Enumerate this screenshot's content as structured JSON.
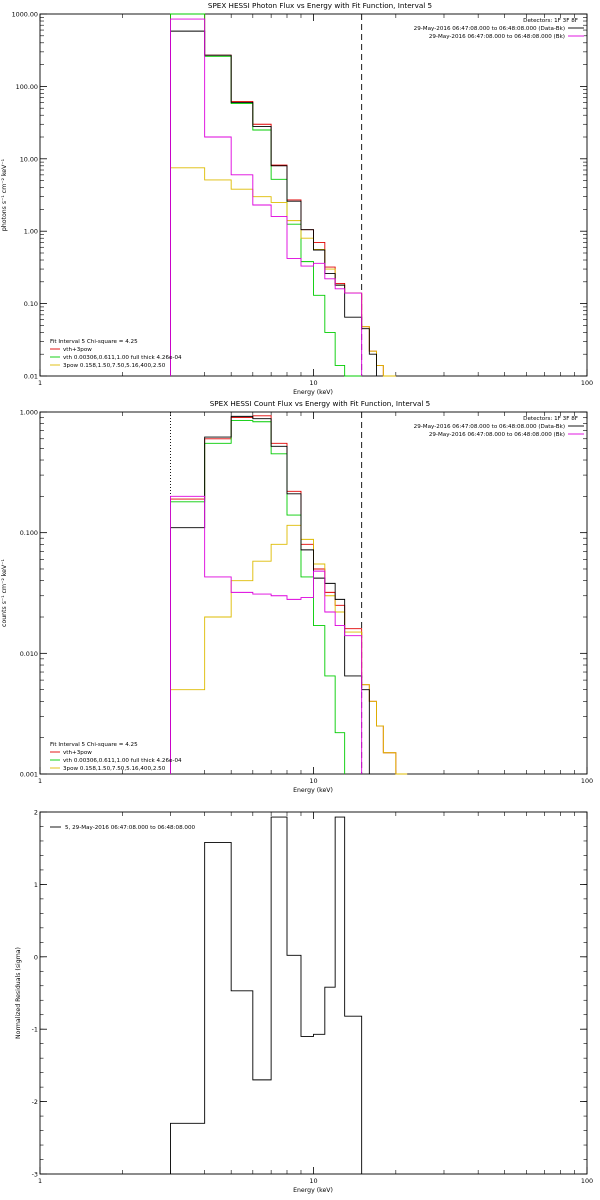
{
  "chart_data": [
    {
      "type": "line",
      "title": "SPEX HESSI Photon Flux vs Energy with Fit Function, Interval 5",
      "xlabel": "Energy (keV)",
      "ylabel": "photons s⁻¹ cm⁻² keV⁻¹",
      "xscale": "log",
      "yscale": "log",
      "xlim": [
        1,
        100
      ],
      "ylim": [
        0.01,
        1000
      ],
      "x_ticks": [
        {
          "v": 1,
          "label": "1"
        },
        {
          "v": 10,
          "label": "10"
        },
        {
          "v": 100,
          "label": "100"
        }
      ],
      "y_ticks": [
        {
          "v": 1000,
          "label": "1000.00"
        },
        {
          "v": 100,
          "label": "100.00"
        },
        {
          "v": 10,
          "label": "10.00"
        },
        {
          "v": 1,
          "label": "1.00"
        },
        {
          "v": 0.1,
          "label": "0.10"
        },
        {
          "v": 0.01,
          "label": "0.01"
        }
      ],
      "legend_top": {
        "heading": "Detectors: 1F 3F 8F",
        "lines": [
          {
            "text": "29-May-2016 06:47:08.000 to 06:48:08.000 (Data-Bk)",
            "color": "#000000"
          },
          {
            "text": "29-May-2016 06:47:08.000 to 06:48:08.000 (Bk)",
            "color": "#dd00dd"
          }
        ]
      },
      "legend_bottom": {
        "heading": "Fit Interval 5   Chi-square = 4.25",
        "lines": [
          {
            "text": "vth+3pow",
            "color": "#e00000"
          },
          {
            "text": "vth 0.00306,0.611,1.00  full thick 4.26e-04",
            "color": "#00cc00"
          },
          {
            "text": "3pow 0.158,1.50,7.50,5.16,400,2.50",
            "color": "#ddbb00"
          }
        ]
      },
      "energy_markers": [
        {
          "x": 3,
          "style": "dotted",
          "color": "#000000"
        },
        {
          "x": 15,
          "style": "dashed",
          "color": "#000000"
        }
      ],
      "bin_edges": [
        3,
        4,
        5,
        6,
        7,
        8,
        9,
        10,
        11,
        12,
        13,
        15,
        16,
        17,
        18,
        20,
        22
      ],
      "series": [
        {
          "name": "vth+3pow",
          "color": "#e00000",
          "values": [
            1000,
            270,
            62,
            30,
            8.2,
            2.7,
            1.05,
            0.7,
            0.32,
            0.19,
            0.14,
            0.048,
            0.022,
            0.014,
            0.0035,
            null
          ]
        },
        {
          "name": "vth 0.00306,0.611,1.00  full thick 4.26e-04",
          "color": "#00cc00",
          "values": [
            1000,
            260,
            58,
            25,
            5.2,
            1.25,
            0.38,
            0.13,
            0.04,
            0.014,
            0.0045,
            null,
            null,
            null,
            null,
            null
          ]
        },
        {
          "name": "3pow 0.158,1.50,7.50,5.16,400,2.50",
          "color": "#ddbb00",
          "values": [
            7.5,
            5.1,
            3.8,
            3.0,
            2.5,
            1.4,
            0.8,
            0.56,
            0.3,
            0.18,
            0.14,
            0.048,
            0.022,
            0.014,
            0.0035,
            null
          ]
        },
        {
          "name": "Data-Bk",
          "color": "#000000",
          "values": [
            580,
            270,
            60,
            28,
            8.0,
            2.6,
            1.05,
            0.55,
            0.26,
            0.18,
            0.065,
            0.045,
            0.02,
            null,
            null,
            null
          ]
        },
        {
          "name": "Bk",
          "color": "#dd00dd",
          "values": [
            850,
            20,
            6.0,
            2.3,
            1.6,
            0.42,
            0.33,
            0.36,
            0.22,
            0.16,
            0.14,
            null,
            null,
            null,
            null,
            null
          ]
        }
      ]
    },
    {
      "type": "line",
      "title": "SPEX HESSI Count Flux vs Energy with Fit Function, Interval 5",
      "xlabel": "Energy (keV)",
      "ylabel": "counts s⁻¹ cm⁻² keV⁻¹",
      "xscale": "log",
      "yscale": "log",
      "xlim": [
        1,
        100
      ],
      "ylim": [
        0.001,
        1
      ],
      "x_ticks": [
        {
          "v": 1,
          "label": "1"
        },
        {
          "v": 10,
          "label": "10"
        },
        {
          "v": 100,
          "label": "100"
        }
      ],
      "y_ticks": [
        {
          "v": 1,
          "label": "1.000"
        },
        {
          "v": 0.1,
          "label": "0.100"
        },
        {
          "v": 0.01,
          "label": "0.010"
        },
        {
          "v": 0.001,
          "label": "0.001"
        }
      ],
      "legend_top": {
        "heading": "Detectors: 1F 3F 8F",
        "lines": [
          {
            "text": "29-May-2016 06:47:08.000 to 06:48:08.000 (Data-Bk)",
            "color": "#000000"
          },
          {
            "text": "29-May-2016 06:47:08.000 to 06:48:08.000 (Bk)",
            "color": "#dd00dd"
          }
        ]
      },
      "legend_bottom": {
        "heading": "Fit Interval 5   Chi-square = 4.25",
        "lines": [
          {
            "text": "vth+3pow",
            "color": "#e00000"
          },
          {
            "text": "vth 0.00306,0.611,1.00  full thick 4.26e-04",
            "color": "#00cc00"
          },
          {
            "text": "3pow 0.158,1.50,7.50,5.16,400,2.50",
            "color": "#ddbb00"
          }
        ]
      },
      "energy_markers": [
        {
          "x": 3,
          "style": "dotted",
          "color": "#000000"
        },
        {
          "x": 15,
          "style": "dashed",
          "color": "#000000"
        }
      ],
      "bin_edges": [
        3,
        4,
        5,
        6,
        7,
        8,
        9,
        10,
        11,
        12,
        13,
        15,
        16,
        17,
        18,
        20,
        22
      ],
      "series": [
        {
          "name": "vth+3pow",
          "color": "#e00000",
          "values": [
            0.19,
            0.6,
            0.9,
            0.93,
            0.55,
            0.22,
            0.08,
            0.05,
            0.032,
            0.025,
            0.016,
            0.0055,
            0.004,
            0.0025,
            0.0015,
            0.001
          ]
        },
        {
          "name": "vth 0.00306,0.611,1.00  full thick 4.26e-04",
          "color": "#00cc00",
          "values": [
            0.18,
            0.55,
            0.85,
            0.83,
            0.45,
            0.14,
            0.043,
            0.017,
            0.0065,
            0.0022,
            null,
            null,
            null,
            null,
            null,
            null
          ]
        },
        {
          "name": "3pow 0.158,1.50,7.50,5.16,400,2.50",
          "color": "#ddbb00",
          "values": [
            0.005,
            0.02,
            0.04,
            0.058,
            0.08,
            0.115,
            0.088,
            0.055,
            0.03,
            0.022,
            0.015,
            0.0055,
            0.004,
            0.0025,
            0.0015,
            0.001
          ]
        },
        {
          "name": "Data-Bk",
          "color": "#000000",
          "values": [
            0.11,
            0.62,
            0.92,
            0.88,
            0.52,
            0.21,
            0.072,
            0.042,
            0.038,
            0.028,
            0.0065,
            0.005,
            null,
            null,
            null,
            null
          ]
        },
        {
          "name": "Bk",
          "color": "#dd00dd",
          "values": [
            0.2,
            0.043,
            0.032,
            0.031,
            0.03,
            0.028,
            0.029,
            0.048,
            0.022,
            0.017,
            0.014,
            null,
            null,
            null,
            null,
            null
          ]
        }
      ]
    },
    {
      "type": "line",
      "title": "",
      "xlabel": "Energy (keV)",
      "ylabel": "Normalized Residuals (sigma)",
      "xscale": "log",
      "yscale": "linear",
      "xlim": [
        1,
        100
      ],
      "ylim": [
        -3,
        2
      ],
      "x_ticks": [
        {
          "v": 1,
          "label": "1"
        },
        {
          "v": 10,
          "label": "10"
        },
        {
          "v": 100,
          "label": "100"
        }
      ],
      "y_ticks": [
        {
          "v": 2,
          "label": "2"
        },
        {
          "v": 1,
          "label": "1"
        },
        {
          "v": 0,
          "label": "0"
        },
        {
          "v": -1,
          "label": "-1"
        },
        {
          "v": -2,
          "label": "-2"
        },
        {
          "v": -3,
          "label": "-3"
        }
      ],
      "legend": {
        "text": "5, 29-May-2016 06:47:08.000 to 06:48:08.000",
        "color": "#000000"
      },
      "bin_edges": [
        3,
        4,
        5,
        6,
        7,
        8,
        9,
        10,
        11,
        12,
        13,
        15
      ],
      "series": [
        {
          "name": "5, 29-May-2016 06:47:08.000 to 06:48:08.000",
          "color": "#000000",
          "values": [
            -2.3,
            1.58,
            -0.47,
            -1.7,
            1.93,
            0.02,
            -1.1,
            -1.07,
            -0.42,
            1.93,
            -0.82
          ]
        }
      ]
    }
  ]
}
